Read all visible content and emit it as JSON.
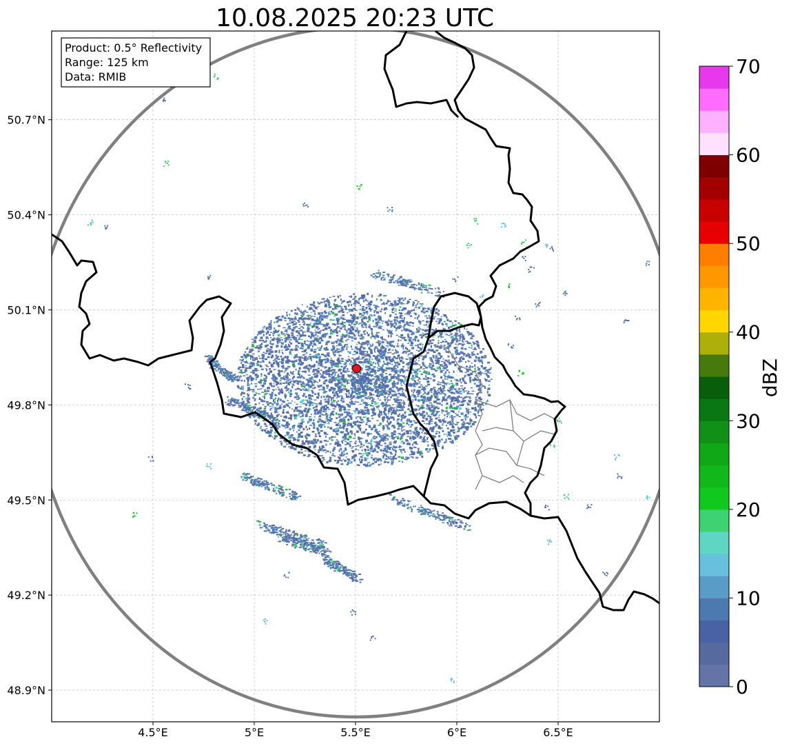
{
  "title": "10.08.2025 20:23 UTC",
  "info_box": {
    "product": "Product: 0.5° Reflectivity",
    "range": "Range: 125 km",
    "data": "Data: RMIB"
  },
  "map": {
    "lon_range": [
      4.0,
      7.0
    ],
    "lat_range": [
      48.8,
      50.98
    ],
    "x_ticks": [
      {
        "value": 4.5,
        "label": "4.5°E"
      },
      {
        "value": 5.0,
        "label": "5°E"
      },
      {
        "value": 5.5,
        "label": "5.5°E"
      },
      {
        "value": 6.0,
        "label": "6°E"
      },
      {
        "value": 6.5,
        "label": "6.5°E"
      }
    ],
    "y_ticks": [
      {
        "value": 48.9,
        "label": "48.9°N"
      },
      {
        "value": 49.2,
        "label": "49.2°N"
      },
      {
        "value": 49.5,
        "label": "49.5°N"
      },
      {
        "value": 49.8,
        "label": "49.8°N"
      },
      {
        "value": 50.1,
        "label": "50.1°N"
      },
      {
        "value": 50.4,
        "label": "50.4°N"
      },
      {
        "value": 50.7,
        "label": "50.7°N"
      }
    ],
    "grid": true,
    "radar_site": {
      "lon": 5.505,
      "lat": 49.915,
      "color": "#e8101e"
    },
    "range_ring_color": "#808080",
    "border_color": "#000000",
    "district_color": "#808080"
  },
  "colorbar": {
    "label": "dBZ",
    "min": 0,
    "max": 70,
    "ticks": [
      {
        "value": 0,
        "label": "0"
      },
      {
        "value": 10,
        "label": "10"
      },
      {
        "value": 20,
        "label": "20"
      },
      {
        "value": 30,
        "label": "30"
      },
      {
        "value": 40,
        "label": "40"
      },
      {
        "value": 50,
        "label": "50"
      },
      {
        "value": 60,
        "label": "60"
      },
      {
        "value": 70,
        "label": "70"
      }
    ],
    "colors": [
      "#6574a7",
      "#566aa0",
      "#4962a3",
      "#4b79b0",
      "#5a9cc8",
      "#66c0de",
      "#5fd6c4",
      "#3dd373",
      "#10c81e",
      "#10b81a",
      "#10a816",
      "#109016",
      "#0a7812",
      "#085e0a",
      "#477a0c",
      "#adb00a",
      "#ffd600",
      "#ffb400",
      "#ff9800",
      "#ff7e00",
      "#e60000",
      "#c80000",
      "#a20000",
      "#7e0000",
      "#ffe0ff",
      "#ffb0ff",
      "#ff6cff",
      "#e838ee"
    ]
  }
}
